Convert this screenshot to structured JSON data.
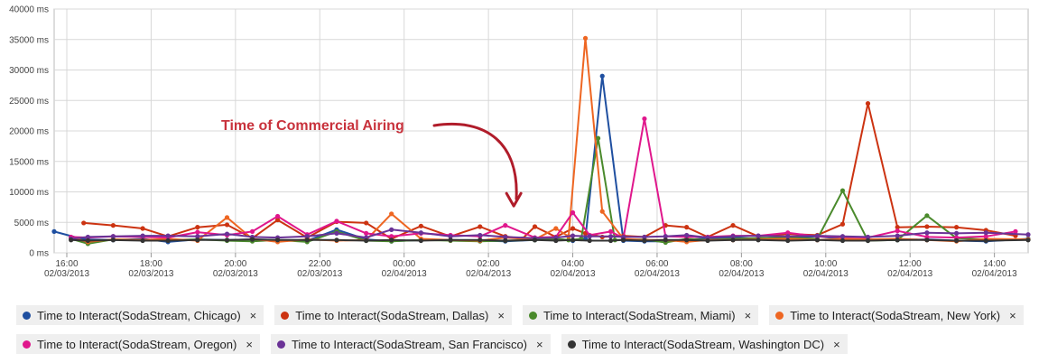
{
  "chart_data": {
    "type": "line",
    "y_tick_labels": [
      "0 ms",
      "5000 ms",
      "10000 ms",
      "15000 ms",
      "20000 ms",
      "25000 ms",
      "30000 ms",
      "35000 ms",
      "40000 ms"
    ],
    "x_tick_labels": [
      {
        "time": "16:00",
        "date": "02/03/2013"
      },
      {
        "time": "18:00",
        "date": "02/03/2013"
      },
      {
        "time": "20:00",
        "date": "02/03/2013"
      },
      {
        "time": "22:00",
        "date": "02/03/2013"
      },
      {
        "time": "00:00",
        "date": "02/04/2013"
      },
      {
        "time": "02:00",
        "date": "02/04/2013"
      },
      {
        "time": "04:00",
        "date": "02/04/2013"
      },
      {
        "time": "06:00",
        "date": "02/04/2013"
      },
      {
        "time": "08:00",
        "date": "02/04/2013"
      },
      {
        "time": "10:00",
        "date": "02/04/2013"
      },
      {
        "time": "12:00",
        "date": "02/04/2013"
      },
      {
        "time": "14:00",
        "date": "02/04/2013"
      }
    ],
    "x_unit": "hours since 02/03/2013 16:00",
    "xlim": [
      -0.3,
      22.8
    ],
    "ylim": [
      0,
      40000
    ],
    "grid": true,
    "legend_position": "bottom",
    "annotation": {
      "text": "Time of Commercial Airing",
      "x": 10.6,
      "y": 6500
    },
    "series": [
      {
        "name": "Time to Interact(SodaStream, Chicago)",
        "color": "#1f4fa0",
        "x": [
          -0.3,
          0.4,
          1.1,
          1.8,
          2.4,
          3.1,
          3.8,
          4.4,
          5.0,
          5.7,
          6.4,
          7.1,
          7.7,
          8.4,
          9.1,
          9.8,
          10.4,
          11.1,
          11.6,
          12.0,
          12.3,
          12.7,
          13.2,
          13.7,
          14.2,
          14.7,
          15.2,
          15.8,
          16.4,
          17.1,
          17.8,
          18.4,
          19.0,
          19.7,
          20.4,
          21.1,
          21.8,
          22.8
        ],
        "values": [
          3500,
          2200,
          2100,
          2300,
          1800,
          2200,
          2100,
          2200,
          2100,
          2000,
          3800,
          2200,
          1900,
          2100,
          2100,
          2000,
          1900,
          2100,
          2300,
          2000,
          2300,
          29000,
          2000,
          1900,
          1900,
          2100,
          2400,
          2500,
          2300,
          2500,
          2700,
          2300,
          2200,
          2100,
          2200,
          2000,
          1900,
          2300
        ]
      },
      {
        "name": "Time to Interact(SodaStream, Dallas)",
        "color": "#cc3311",
        "x": [
          0.4,
          1.1,
          1.8,
          2.4,
          3.1,
          3.8,
          4.4,
          5.0,
          5.7,
          6.4,
          7.1,
          7.7,
          8.4,
          9.1,
          9.8,
          10.4,
          10.8,
          11.1,
          11.6,
          12.0,
          12.3,
          12.7,
          13.2,
          13.7,
          14.2,
          14.7,
          15.2,
          15.8,
          16.4,
          17.1,
          17.8,
          18.4,
          19.0,
          19.7,
          20.4,
          21.1,
          21.8,
          22.5
        ],
        "values": [
          4900,
          4500,
          4000,
          2700,
          4200,
          4600,
          2400,
          5400,
          2500,
          5100,
          4900,
          2300,
          4400,
          2700,
          4300,
          2700,
          2300,
          4300,
          2600,
          4000,
          3200,
          2600,
          2800,
          2600,
          4500,
          4200,
          2600,
          4500,
          2700,
          3100,
          2900,
          4700,
          24500,
          4200,
          4300,
          4200,
          3700,
          2800
        ]
      },
      {
        "name": "Time to Interact(SodaStream, Miami)",
        "color": "#4a8a2c",
        "x": [
          0.1,
          0.5,
          1.1,
          1.8,
          2.4,
          3.1,
          3.8,
          4.4,
          5.0,
          5.7,
          6.4,
          7.1,
          7.7,
          8.4,
          9.1,
          9.8,
          10.4,
          11.1,
          11.6,
          11.9,
          12.2,
          12.6,
          13.0,
          13.7,
          14.2,
          14.7,
          15.2,
          15.8,
          16.4,
          17.1,
          17.8,
          18.4,
          19.0,
          19.7,
          20.4,
          21.1,
          21.8,
          22.8
        ],
        "values": [
          2300,
          1500,
          2200,
          2100,
          2100,
          2200,
          2000,
          1900,
          2100,
          1800,
          3500,
          2000,
          1900,
          2100,
          2000,
          1900,
          2000,
          2100,
          2300,
          2100,
          2300,
          18800,
          2100,
          2200,
          1700,
          2300,
          2100,
          2300,
          2400,
          2500,
          2300,
          10200,
          2000,
          2100,
          6100,
          2400,
          2200,
          2200
        ]
      },
      {
        "name": "Time to Interact(SodaStream, New York)",
        "color": "#ee6622",
        "x": [
          0.1,
          0.5,
          1.1,
          1.8,
          2.4,
          3.1,
          3.8,
          4.4,
          5.0,
          5.7,
          6.4,
          7.1,
          7.7,
          8.4,
          9.1,
          9.8,
          10.4,
          11.1,
          11.6,
          11.9,
          12.3,
          12.7,
          13.2,
          13.7,
          14.2,
          14.7,
          15.2,
          15.8,
          16.4,
          17.1,
          17.8,
          18.4,
          19.0,
          19.7,
          20.4,
          21.1,
          21.8,
          22.8
        ],
        "values": [
          2500,
          1800,
          2200,
          2100,
          2300,
          2000,
          5800,
          2300,
          1800,
          2200,
          2000,
          2100,
          6400,
          2300,
          2100,
          2000,
          2500,
          2200,
          4000,
          2700,
          35200,
          6800,
          2300,
          2100,
          2100,
          1800,
          2100,
          2100,
          2200,
          2300,
          2100,
          2300,
          2200,
          2300,
          2100,
          1900,
          2300,
          2200
        ]
      },
      {
        "name": "Time to Interact(SodaStream, Oregon)",
        "color": "#e0178c",
        "x": [
          0.1,
          0.5,
          1.1,
          1.8,
          2.4,
          3.1,
          3.8,
          4.4,
          5.0,
          5.7,
          6.4,
          7.1,
          7.7,
          8.4,
          9.1,
          9.8,
          10.4,
          11.1,
          11.6,
          12.0,
          12.4,
          12.9,
          13.2,
          13.7,
          14.2,
          14.7,
          15.2,
          15.8,
          16.4,
          17.1,
          17.8,
          18.4,
          19.0,
          19.7,
          20.4,
          21.1,
          21.8,
          22.5
        ],
        "values": [
          2600,
          2500,
          2700,
          2600,
          2500,
          3400,
          2900,
          3500,
          6000,
          3000,
          5200,
          3200,
          2700,
          3200,
          2900,
          2700,
          4500,
          2500,
          2600,
          6600,
          2900,
          3500,
          2400,
          22000,
          2700,
          2600,
          2600,
          2800,
          2800,
          3300,
          2700,
          2600,
          2500,
          3600,
          2600,
          2500,
          2700,
          3500
        ]
      },
      {
        "name": "Time to Interact(SodaStream, San Francisco)",
        "color": "#6a3296",
        "x": [
          0.1,
          0.5,
          1.1,
          1.8,
          2.4,
          3.1,
          3.8,
          4.4,
          5.0,
          5.7,
          6.4,
          7.1,
          7.7,
          8.4,
          9.1,
          9.8,
          10.4,
          11.1,
          11.6,
          12.0,
          12.4,
          12.9,
          13.2,
          13.7,
          14.2,
          14.7,
          15.2,
          15.8,
          16.4,
          17.1,
          17.8,
          18.4,
          19.0,
          19.7,
          20.4,
          21.1,
          21.8,
          22.8
        ],
        "values": [
          2300,
          2600,
          2700,
          2800,
          2800,
          2700,
          3100,
          2600,
          2500,
          2700,
          3200,
          2500,
          3800,
          3300,
          2700,
          2900,
          2600,
          2400,
          2500,
          2800,
          2700,
          2700,
          2600,
          2600,
          2700,
          2900,
          2500,
          2700,
          2800,
          2700,
          2800,
          2700,
          2600,
          2800,
          3300,
          3200,
          3300,
          3000
        ]
      },
      {
        "name": "Time to Interact(SodaStream, Washington DC)",
        "color": "#333333",
        "x": [
          0.1,
          0.5,
          1.1,
          1.8,
          2.4,
          3.1,
          3.8,
          4.4,
          5.0,
          5.7,
          6.4,
          7.1,
          7.7,
          8.4,
          9.1,
          9.8,
          10.4,
          11.1,
          11.6,
          12.0,
          12.4,
          12.9,
          13.2,
          13.7,
          14.2,
          14.7,
          15.2,
          15.8,
          16.4,
          17.1,
          17.8,
          18.4,
          19.0,
          19.7,
          20.4,
          21.1,
          21.8,
          22.8
        ],
        "values": [
          2100,
          2000,
          2100,
          2000,
          2000,
          2100,
          2100,
          2200,
          2100,
          2100,
          2100,
          2000,
          2100,
          2000,
          2100,
          2100,
          2000,
          2100,
          2000,
          2100,
          2000,
          2000,
          2100,
          2000,
          2100,
          2100,
          2000,
          2100,
          2100,
          2000,
          2100,
          2000,
          2000,
          2100,
          2100,
          2000,
          2000,
          2100
        ]
      }
    ]
  },
  "legend": [
    {
      "label": "Time to Interact(SodaStream, Chicago)",
      "color": "#1f4fa0",
      "close": "×"
    },
    {
      "label": "Time to Interact(SodaStream, Dallas)",
      "color": "#cc3311",
      "close": "×"
    },
    {
      "label": "Time to Interact(SodaStream, Miami)",
      "color": "#4a8a2c",
      "close": "×"
    },
    {
      "label": "Time to Interact(SodaStream, New York)",
      "color": "#ee6622",
      "close": "×"
    },
    {
      "label": "Time to Interact(SodaStream, Oregon)",
      "color": "#e0178c",
      "close": "×"
    },
    {
      "label": "Time to Interact(SodaStream, San Francisco)",
      "color": "#6a3296",
      "close": "×"
    },
    {
      "label": "Time to Interact(SodaStream, Washington DC)",
      "color": "#333333",
      "close": "×"
    }
  ]
}
